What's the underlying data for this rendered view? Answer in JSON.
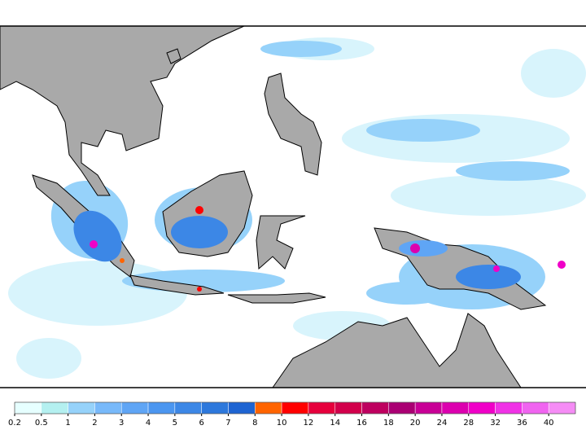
{
  "legend": {
    "levels": [
      0.2,
      0.5,
      1,
      2,
      3,
      4,
      5,
      6,
      7,
      8,
      10,
      12,
      14,
      16,
      18,
      20,
      24,
      28,
      32,
      36,
      40
    ],
    "colors": [
      "#e6ffff",
      "#b4f0f0",
      "#96d2fa",
      "#78b9fa",
      "#5fa5f5",
      "#4b96f0",
      "#3c87e6",
      "#2d78dc",
      "#1e64d2",
      "#ff6400",
      "#ff0000",
      "#e6003c",
      "#d2004b",
      "#be005f",
      "#aa0073",
      "#c80096",
      "#dc00af",
      "#f000c8",
      "#f032e6",
      "#f064f0",
      "#f58cf5"
    ]
  }
}
